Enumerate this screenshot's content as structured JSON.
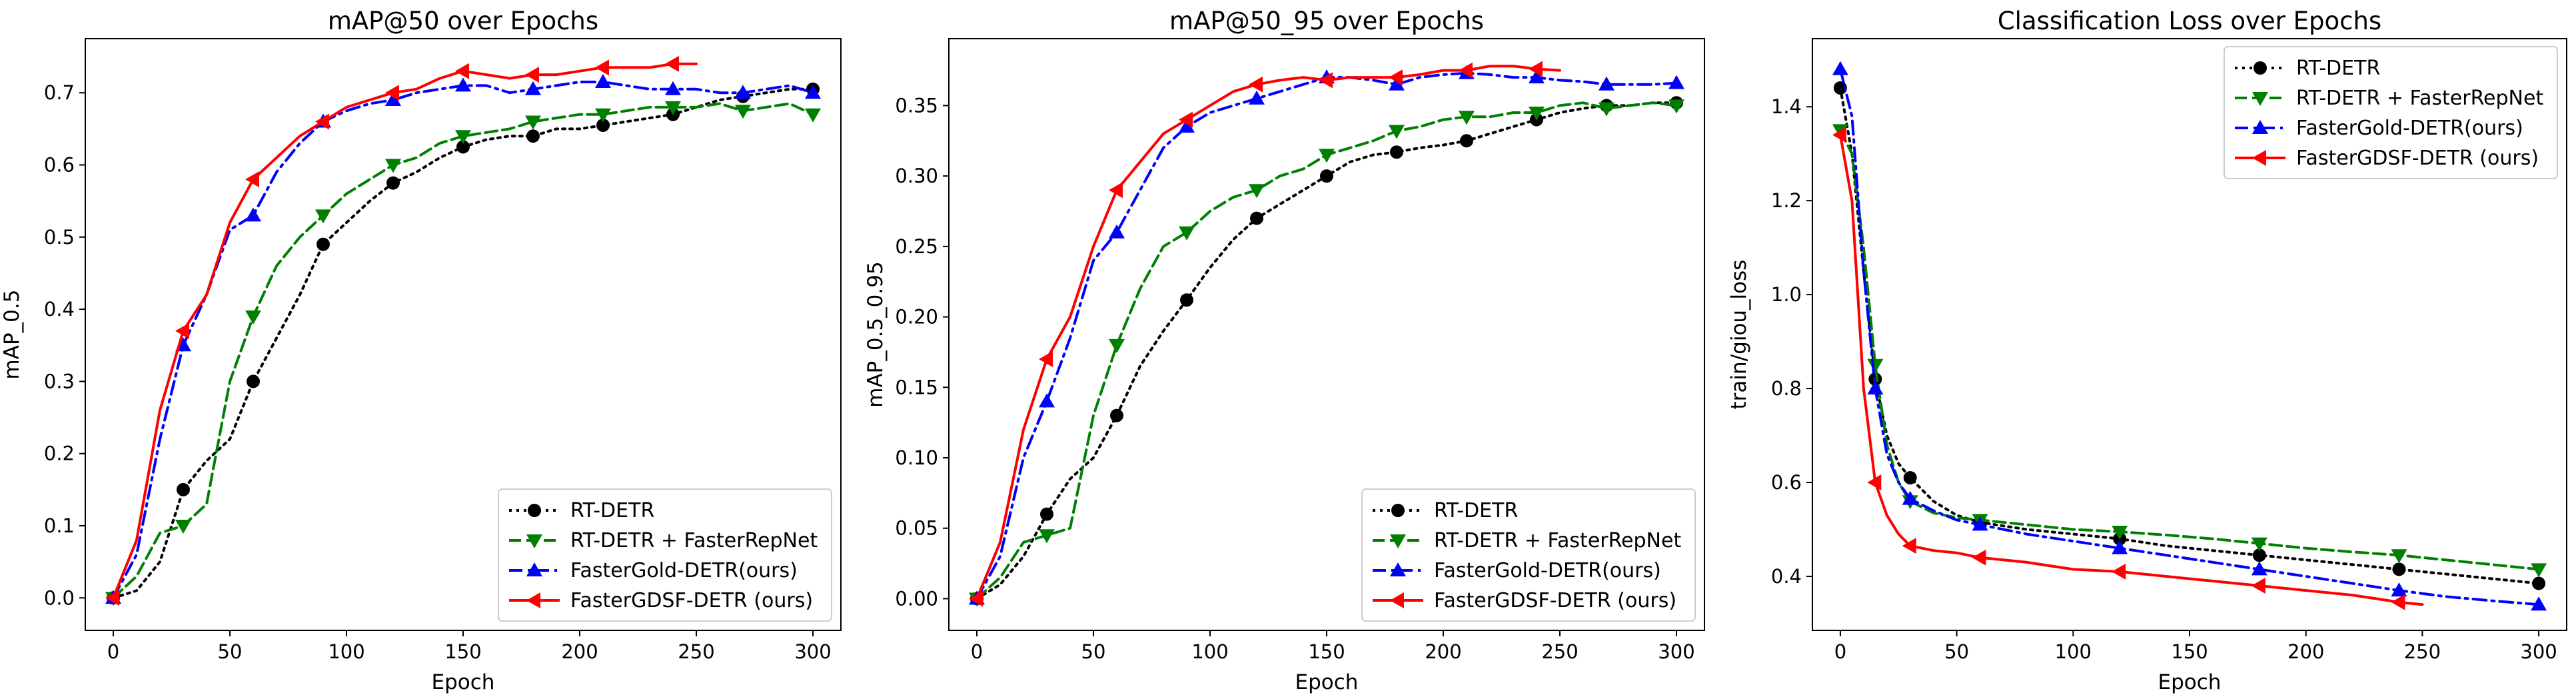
{
  "chart_data": [
    {
      "type": "line",
      "title": "mAP@50 over Epochs",
      "xlabel": "Epoch",
      "ylabel": "mAP_0.5",
      "xlim": [
        -12,
        312
      ],
      "ylim": [
        -0.045,
        0.775
      ],
      "xticks": [
        0,
        50,
        100,
        150,
        200,
        250,
        300
      ],
      "xtick_labels": [
        "0",
        "50",
        "100",
        "150",
        "200",
        "250",
        "300"
      ],
      "yticks": [
        0.0,
        0.1,
        0.2,
        0.3,
        0.4,
        0.5,
        0.6,
        0.7
      ],
      "ytick_labels": [
        "0.0",
        "0.1",
        "0.2",
        "0.3",
        "0.4",
        "0.5",
        "0.6",
        "0.7"
      ],
      "legend_position": "lower-right",
      "series": [
        {
          "name": "RT-DETR",
          "color": "#000000",
          "style": "dotted",
          "marker": "circle",
          "x": [
            0,
            10,
            20,
            30,
            40,
            50,
            60,
            70,
            80,
            90,
            100,
            110,
            120,
            130,
            140,
            150,
            160,
            170,
            180,
            190,
            200,
            210,
            220,
            230,
            240,
            250,
            260,
            270,
            280,
            290,
            300
          ],
          "y": [
            0.0,
            0.01,
            0.05,
            0.15,
            0.19,
            0.22,
            0.3,
            0.36,
            0.42,
            0.49,
            0.52,
            0.55,
            0.575,
            0.59,
            0.61,
            0.625,
            0.635,
            0.64,
            0.64,
            0.65,
            0.65,
            0.655,
            0.66,
            0.665,
            0.67,
            0.68,
            0.69,
            0.695,
            0.7,
            0.705,
            0.705
          ]
        },
        {
          "name": "RT-DETR + FasterRepNet",
          "color": "#008000",
          "style": "dashed",
          "marker": "triangle-down",
          "x": [
            0,
            10,
            20,
            30,
            40,
            50,
            60,
            70,
            80,
            90,
            100,
            110,
            120,
            130,
            140,
            150,
            160,
            170,
            180,
            190,
            200,
            210,
            220,
            230,
            240,
            250,
            260,
            270,
            280,
            290,
            300
          ],
          "y": [
            0.0,
            0.03,
            0.09,
            0.1,
            0.13,
            0.3,
            0.39,
            0.46,
            0.5,
            0.53,
            0.56,
            0.58,
            0.6,
            0.61,
            0.63,
            0.64,
            0.645,
            0.65,
            0.66,
            0.665,
            0.67,
            0.67,
            0.675,
            0.68,
            0.68,
            0.68,
            0.685,
            0.675,
            0.68,
            0.685,
            0.67
          ]
        },
        {
          "name": "FasterGold-DETR(ours)",
          "color": "#0000ff",
          "style": "dashdot",
          "marker": "triangle-up",
          "x": [
            0,
            10,
            20,
            30,
            40,
            50,
            60,
            70,
            80,
            90,
            100,
            110,
            120,
            130,
            140,
            150,
            160,
            170,
            180,
            190,
            200,
            210,
            220,
            230,
            240,
            250,
            260,
            270,
            280,
            290,
            300
          ],
          "y": [
            0.0,
            0.06,
            0.22,
            0.35,
            0.42,
            0.51,
            0.53,
            0.59,
            0.63,
            0.66,
            0.675,
            0.685,
            0.69,
            0.7,
            0.705,
            0.71,
            0.71,
            0.7,
            0.705,
            0.71,
            0.715,
            0.715,
            0.71,
            0.705,
            0.705,
            0.705,
            0.7,
            0.7,
            0.705,
            0.71,
            0.7
          ]
        },
        {
          "name": "FasterGDSF-DETR (ours)",
          "color": "#ff0000",
          "style": "solid",
          "marker": "triangle-left",
          "x": [
            0,
            10,
            20,
            30,
            40,
            50,
            60,
            70,
            80,
            90,
            100,
            110,
            120,
            130,
            140,
            150,
            160,
            170,
            180,
            190,
            200,
            210,
            220,
            230,
            240,
            250
          ],
          "y": [
            0.0,
            0.08,
            0.26,
            0.37,
            0.42,
            0.52,
            0.58,
            0.61,
            0.64,
            0.66,
            0.68,
            0.69,
            0.7,
            0.705,
            0.72,
            0.73,
            0.725,
            0.72,
            0.725,
            0.725,
            0.73,
            0.735,
            0.735,
            0.735,
            0.74,
            0.74
          ]
        }
      ]
    },
    {
      "type": "line",
      "title": "mAP@50_95 over Epochs",
      "xlabel": "Epoch",
      "ylabel": "mAP_0.5_0.95",
      "xlim": [
        -12,
        312
      ],
      "ylim": [
        -0.0225,
        0.3975
      ],
      "xticks": [
        0,
        50,
        100,
        150,
        200,
        250,
        300
      ],
      "xtick_labels": [
        "0",
        "50",
        "100",
        "150",
        "200",
        "250",
        "300"
      ],
      "yticks": [
        0.0,
        0.05,
        0.1,
        0.15,
        0.2,
        0.25,
        0.3,
        0.35
      ],
      "ytick_labels": [
        "0.00",
        "0.05",
        "0.10",
        "0.15",
        "0.20",
        "0.25",
        "0.30",
        "0.35"
      ],
      "legend_position": "lower-right",
      "series": [
        {
          "name": "RT-DETR",
          "color": "#000000",
          "style": "dotted",
          "marker": "circle",
          "x": [
            0,
            10,
            20,
            30,
            40,
            50,
            60,
            70,
            80,
            90,
            100,
            110,
            120,
            130,
            140,
            150,
            160,
            170,
            180,
            190,
            200,
            210,
            220,
            230,
            240,
            250,
            260,
            270,
            280,
            290,
            300
          ],
          "y": [
            0.0,
            0.01,
            0.03,
            0.06,
            0.085,
            0.1,
            0.13,
            0.165,
            0.19,
            0.212,
            0.235,
            0.255,
            0.27,
            0.28,
            0.29,
            0.3,
            0.31,
            0.315,
            0.317,
            0.32,
            0.322,
            0.325,
            0.33,
            0.335,
            0.34,
            0.345,
            0.348,
            0.35,
            0.35,
            0.352,
            0.352
          ]
        },
        {
          "name": "RT-DETR + FasterRepNet",
          "color": "#008000",
          "style": "dashed",
          "marker": "triangle-down",
          "x": [
            0,
            10,
            20,
            30,
            40,
            50,
            60,
            70,
            80,
            90,
            100,
            110,
            120,
            130,
            140,
            150,
            160,
            170,
            180,
            190,
            200,
            210,
            220,
            230,
            240,
            250,
            260,
            270,
            280,
            290,
            300
          ],
          "y": [
            0.0,
            0.015,
            0.04,
            0.045,
            0.05,
            0.13,
            0.18,
            0.22,
            0.25,
            0.26,
            0.275,
            0.285,
            0.29,
            0.3,
            0.305,
            0.315,
            0.32,
            0.325,
            0.332,
            0.335,
            0.34,
            0.342,
            0.342,
            0.345,
            0.345,
            0.35,
            0.352,
            0.348,
            0.35,
            0.352,
            0.35
          ]
        },
        {
          "name": "FasterGold-DETR(ours)",
          "color": "#0000ff",
          "style": "dashdot",
          "marker": "triangle-up",
          "x": [
            0,
            10,
            20,
            30,
            40,
            50,
            60,
            70,
            80,
            90,
            100,
            110,
            120,
            130,
            140,
            150,
            160,
            170,
            180,
            190,
            200,
            210,
            220,
            230,
            240,
            250,
            260,
            270,
            280,
            290,
            300
          ],
          "y": [
            0.0,
            0.03,
            0.1,
            0.14,
            0.185,
            0.24,
            0.26,
            0.29,
            0.32,
            0.335,
            0.345,
            0.35,
            0.355,
            0.36,
            0.365,
            0.37,
            0.37,
            0.368,
            0.365,
            0.37,
            0.372,
            0.373,
            0.372,
            0.37,
            0.37,
            0.368,
            0.367,
            0.365,
            0.365,
            0.365,
            0.366
          ]
        },
        {
          "name": "FasterGDSF-DETR (ours)",
          "color": "#ff0000",
          "style": "solid",
          "marker": "triangle-left",
          "x": [
            0,
            10,
            20,
            30,
            40,
            50,
            60,
            70,
            80,
            90,
            100,
            110,
            120,
            130,
            140,
            150,
            160,
            170,
            180,
            190,
            200,
            210,
            220,
            230,
            240,
            250
          ],
          "y": [
            0.0,
            0.04,
            0.12,
            0.17,
            0.2,
            0.25,
            0.29,
            0.31,
            0.33,
            0.34,
            0.35,
            0.36,
            0.365,
            0.368,
            0.37,
            0.368,
            0.37,
            0.37,
            0.37,
            0.372,
            0.375,
            0.375,
            0.378,
            0.378,
            0.376,
            0.375
          ]
        }
      ]
    },
    {
      "type": "line",
      "title": "Classification Loss over Epochs",
      "xlabel": "Epoch",
      "ylabel": "train/giou_loss",
      "xlim": [
        -12,
        312
      ],
      "ylim": [
        0.285,
        1.545
      ],
      "xticks": [
        0,
        50,
        100,
        150,
        200,
        250,
        300
      ],
      "xtick_labels": [
        "0",
        "50",
        "100",
        "150",
        "200",
        "250",
        "300"
      ],
      "yticks": [
        0.4,
        0.6,
        0.8,
        1.0,
        1.2,
        1.4
      ],
      "ytick_labels": [
        "0.4",
        "0.6",
        "0.8",
        "1.0",
        "1.2",
        "1.4"
      ],
      "legend_position": "upper-right",
      "series": [
        {
          "name": "RT-DETR",
          "color": "#000000",
          "style": "dotted",
          "marker": "circle",
          "x": [
            0,
            5,
            10,
            15,
            20,
            25,
            30,
            40,
            50,
            60,
            80,
            100,
            120,
            140,
            160,
            180,
            200,
            220,
            240,
            260,
            280,
            300
          ],
          "y": [
            1.44,
            1.3,
            1.05,
            0.82,
            0.7,
            0.64,
            0.61,
            0.56,
            0.53,
            0.515,
            0.5,
            0.49,
            0.48,
            0.465,
            0.455,
            0.445,
            0.435,
            0.425,
            0.415,
            0.405,
            0.395,
            0.385
          ]
        },
        {
          "name": "RT-DETR + FasterRepNet",
          "color": "#008000",
          "style": "dashed",
          "marker": "triangle-down",
          "x": [
            0,
            5,
            10,
            15,
            20,
            25,
            30,
            40,
            50,
            60,
            80,
            100,
            120,
            140,
            160,
            180,
            200,
            220,
            240,
            260,
            280,
            300
          ],
          "y": [
            1.35,
            1.3,
            1.1,
            0.85,
            0.68,
            0.6,
            0.56,
            0.535,
            0.525,
            0.52,
            0.51,
            0.5,
            0.495,
            0.488,
            0.48,
            0.47,
            0.46,
            0.452,
            0.445,
            0.435,
            0.425,
            0.415
          ]
        },
        {
          "name": "FasterGold-DETR(ours)",
          "color": "#0000ff",
          "style": "dashdot",
          "marker": "triangle-up",
          "x": [
            0,
            5,
            10,
            15,
            20,
            25,
            30,
            40,
            50,
            60,
            80,
            100,
            120,
            140,
            160,
            180,
            200,
            220,
            240,
            260,
            280,
            300
          ],
          "y": [
            1.48,
            1.38,
            1.05,
            0.8,
            0.66,
            0.6,
            0.565,
            0.54,
            0.52,
            0.51,
            0.49,
            0.475,
            0.46,
            0.445,
            0.43,
            0.415,
            0.4,
            0.385,
            0.37,
            0.357,
            0.348,
            0.34
          ]
        },
        {
          "name": "FasterGDSF-DETR (ours)",
          "color": "#ff0000",
          "style": "solid",
          "marker": "triangle-left",
          "x": [
            0,
            5,
            10,
            15,
            20,
            25,
            30,
            40,
            50,
            60,
            80,
            100,
            120,
            140,
            160,
            180,
            200,
            220,
            240,
            250
          ],
          "y": [
            1.34,
            1.2,
            0.8,
            0.6,
            0.53,
            0.49,
            0.465,
            0.455,
            0.45,
            0.44,
            0.43,
            0.415,
            0.41,
            0.4,
            0.39,
            0.38,
            0.37,
            0.36,
            0.345,
            0.34
          ]
        }
      ]
    }
  ]
}
